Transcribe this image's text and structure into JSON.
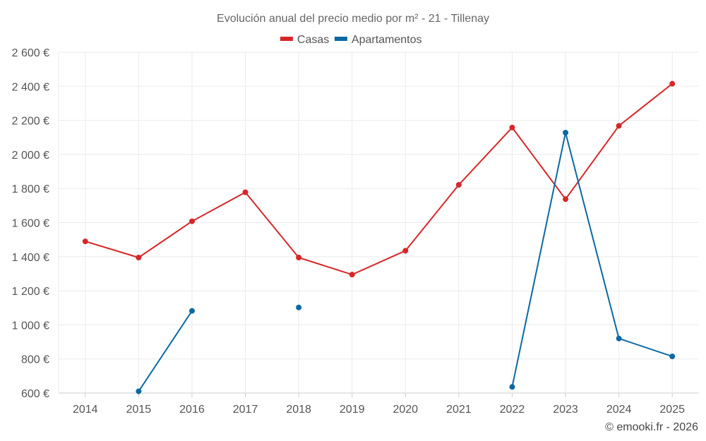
{
  "chart_data": {
    "type": "line",
    "title": "Evolución anual del precio medio por m² - 21 - Tillenay",
    "xlabel": "",
    "ylabel": "",
    "categories": [
      "2014",
      "2015",
      "2016",
      "2017",
      "2018",
      "2019",
      "2020",
      "2021",
      "2022",
      "2023",
      "2024",
      "2025"
    ],
    "ylim": [
      600,
      2600
    ],
    "yticks": [
      600,
      800,
      1000,
      1200,
      1400,
      1600,
      1800,
      2000,
      2200,
      2400,
      2600
    ],
    "ytick_labels": [
      "600 €",
      "800 €",
      "1 000 €",
      "1 200 €",
      "1 400 €",
      "1 600 €",
      "1 800 €",
      "2 000 €",
      "2 200 €",
      "2 400 €",
      "2 600 €"
    ],
    "grid": true,
    "legend_position": "top-center",
    "series": [
      {
        "name": "Casas",
        "color": "#d62728",
        "values": [
          1490,
          1395,
          1608,
          1778,
          1395,
          1295,
          1435,
          1822,
          2158,
          1738,
          2168,
          2415
        ]
      },
      {
        "name": "Apartamentos",
        "color": "#0b69a3",
        "values": [
          null,
          610,
          1082,
          null,
          1102,
          null,
          null,
          null,
          636,
          2128,
          920,
          815
        ]
      }
    ]
  },
  "footer": "© emooki.fr - 2026"
}
